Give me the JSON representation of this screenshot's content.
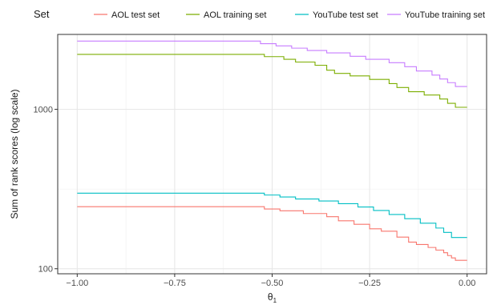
{
  "chart_data": {
    "type": "line",
    "legend_title": "Set",
    "legend_position": "top",
    "xlabel_main": "θ",
    "xlabel_sub": "1",
    "ylabel": "Sum of rank scores (log scale)",
    "y_scale": "log",
    "xlim": [
      -1.05,
      0.05
    ],
    "ylim": [
      93,
      2950
    ],
    "x_ticks": [
      {
        "value": -1.0,
        "label": "−1.00"
      },
      {
        "value": -0.75,
        "label": "−0.75"
      },
      {
        "value": -0.5,
        "label": "−0.50"
      },
      {
        "value": -0.25,
        "label": "−0.25"
      },
      {
        "value": 0.0,
        "label": "0.00"
      }
    ],
    "y_ticks": [
      {
        "value": 100,
        "label": "100"
      },
      {
        "value": 1000,
        "label": "1000"
      }
    ],
    "grid": true,
    "step": true,
    "series": [
      {
        "name": "AOL test set",
        "color": "#F8766D",
        "x": [
          -1.0,
          -0.54,
          -0.52,
          -0.48,
          -0.42,
          -0.36,
          -0.33,
          -0.29,
          -0.25,
          -0.22,
          -0.18,
          -0.15,
          -0.13,
          -0.1,
          -0.08,
          -0.06,
          -0.05,
          -0.04,
          -0.03,
          0.0
        ],
        "y": [
          245,
          245,
          237,
          231,
          222,
          212,
          200,
          190,
          178,
          172,
          158,
          147,
          142,
          136,
          131,
          126,
          121,
          117,
          113,
          113
        ]
      },
      {
        "name": "AOL training set",
        "color": "#7CAE00",
        "x": [
          -1.0,
          -0.54,
          -0.52,
          -0.47,
          -0.44,
          -0.39,
          -0.36,
          -0.34,
          -0.3,
          -0.25,
          -0.2,
          -0.18,
          -0.15,
          -0.11,
          -0.07,
          -0.05,
          -0.03,
          0.0
        ],
        "y": [
          2210,
          2210,
          2140,
          2060,
          1980,
          1890,
          1760,
          1680,
          1620,
          1540,
          1450,
          1370,
          1290,
          1230,
          1160,
          1090,
          1030,
          1030
        ]
      },
      {
        "name": "YouTube test set",
        "color": "#00BFC4",
        "x": [
          -1.0,
          -0.54,
          -0.52,
          -0.48,
          -0.44,
          -0.38,
          -0.33,
          -0.28,
          -0.24,
          -0.2,
          -0.16,
          -0.12,
          -0.08,
          -0.06,
          -0.04,
          0.0
        ],
        "y": [
          298,
          298,
          290,
          282,
          274,
          266,
          256,
          244,
          232,
          219,
          206,
          193,
          180,
          169,
          157,
          157
        ]
      },
      {
        "name": "YouTube training set",
        "color": "#C77CFF",
        "x": [
          -1.0,
          -0.55,
          -0.53,
          -0.49,
          -0.45,
          -0.41,
          -0.36,
          -0.3,
          -0.26,
          -0.2,
          -0.16,
          -0.13,
          -0.09,
          -0.07,
          -0.05,
          -0.03,
          0.0
        ],
        "y": [
          2680,
          2680,
          2580,
          2500,
          2420,
          2340,
          2260,
          2150,
          2060,
          1960,
          1850,
          1740,
          1640,
          1550,
          1470,
          1390,
          1390
        ]
      }
    ]
  }
}
